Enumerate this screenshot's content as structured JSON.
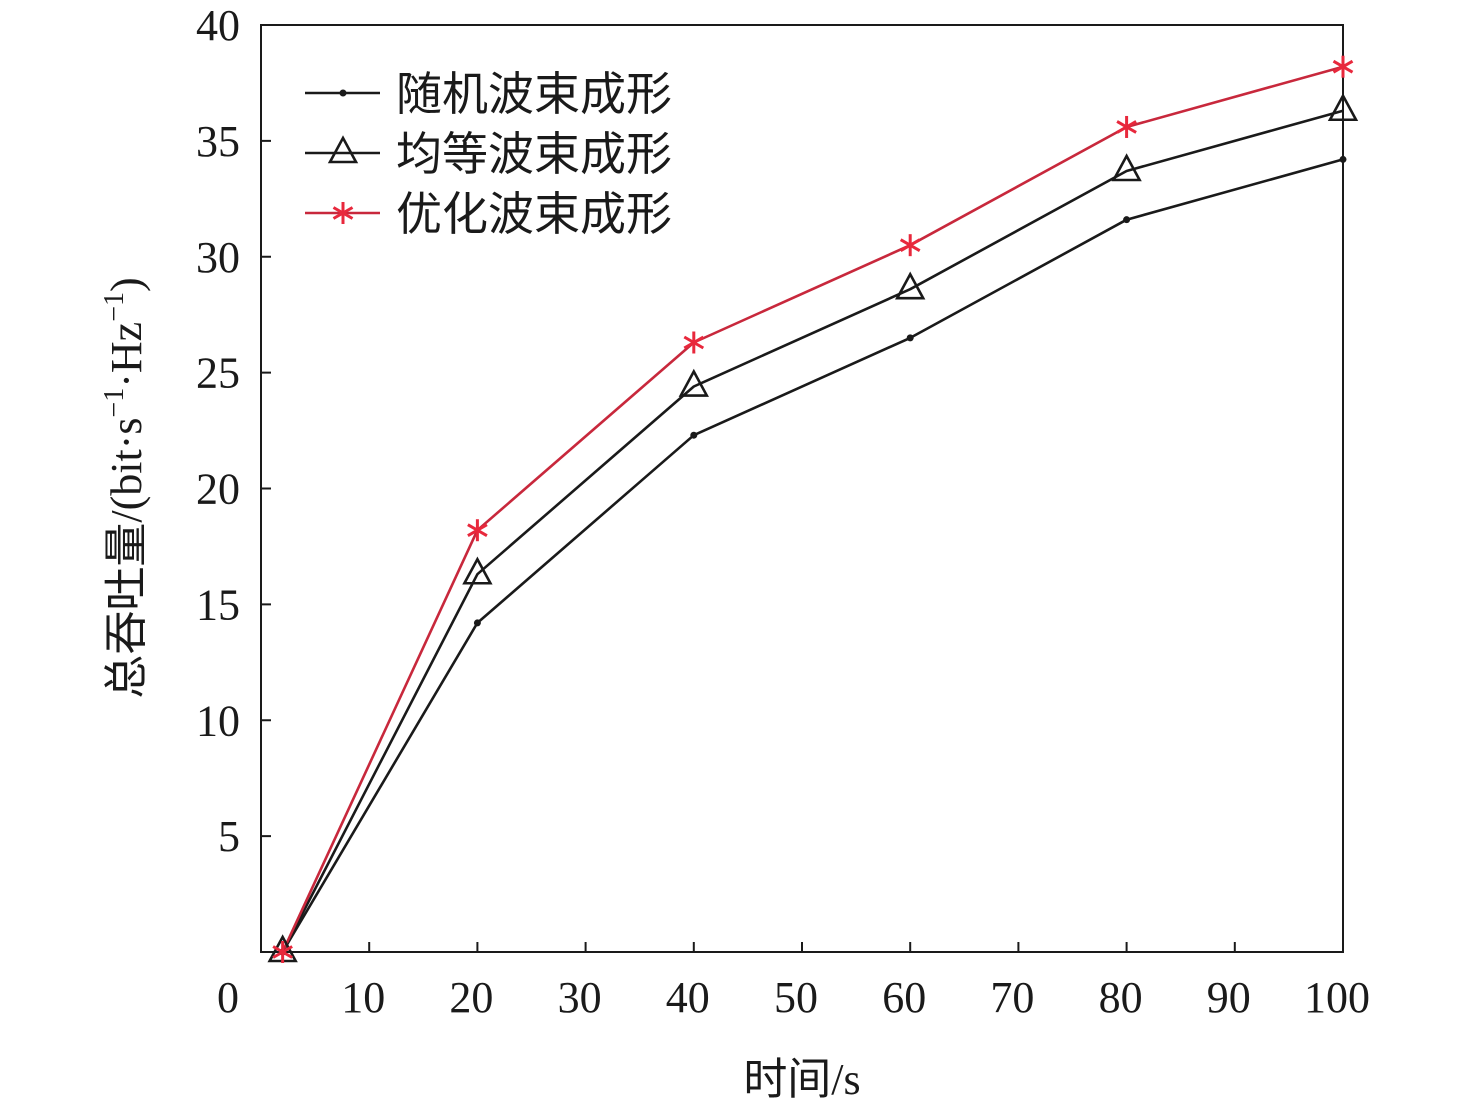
{
  "chart_data": {
    "type": "line",
    "xlabel": "时间/s",
    "ylabel": {
      "prefix": "总吞吐量/(bit·s",
      "sup1": "−1",
      "mid": "·Hz",
      "sup2": "−1",
      "suffix": ")"
    },
    "xlim": [
      0,
      100
    ],
    "ylim": [
      0,
      40
    ],
    "xticks": [
      0,
      10,
      20,
      30,
      40,
      50,
      60,
      70,
      80,
      90,
      100
    ],
    "xtick_labels": [
      "0",
      "10",
      "20",
      "30",
      "40",
      "50",
      "60",
      "70",
      "80",
      "90",
      "100"
    ],
    "yticks": [
      5,
      10,
      15,
      20,
      25,
      30,
      35,
      40
    ],
    "ytick_labels": [
      "5",
      "10",
      "15",
      "20",
      "25",
      "30",
      "35",
      "40"
    ],
    "grid": false,
    "legend_position": "top-left",
    "series": [
      {
        "name": "随机波束成形",
        "marker": "dot",
        "color": "#1a1a1a",
        "points": [
          [
            2,
            0
          ],
          [
            20,
            14.2
          ],
          [
            40,
            22.3
          ],
          [
            60,
            26.5
          ],
          [
            80,
            31.6
          ],
          [
            100,
            34.2
          ]
        ]
      },
      {
        "name": "均等波束成形",
        "marker": "triangle",
        "color": "#1a1a1a",
        "points": [
          [
            2,
            0
          ],
          [
            20,
            16.3
          ],
          [
            40,
            24.4
          ],
          [
            60,
            28.6
          ],
          [
            80,
            33.7
          ],
          [
            100,
            36.3
          ]
        ]
      },
      {
        "name": "优化波束成形",
        "marker": "star",
        "color": "#c8283c",
        "marker_color": "#e8283c",
        "points": [
          [
            2,
            0
          ],
          [
            20,
            18.2
          ],
          [
            40,
            26.3
          ],
          [
            60,
            30.5
          ],
          [
            80,
            35.6
          ],
          [
            100,
            38.2
          ]
        ]
      }
    ]
  }
}
